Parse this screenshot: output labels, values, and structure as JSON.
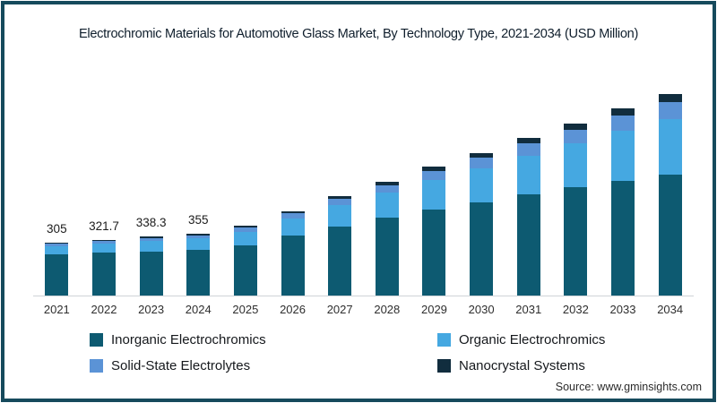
{
  "frame": {
    "border_color": "#164a5c"
  },
  "title": "Electrochromic Materials for Automotive Glass Market, By Technology Type, 2021-2034 (USD Million)",
  "source": "Source: www.gminsights.com",
  "legend": {
    "order": [
      "Inorganic Electrochromics",
      "Organic Electrochromics",
      "Solid-State Electrolytes",
      "Nanocrystal Systems"
    ],
    "colors": {
      "Inorganic Electrochromics": "#0d5a71",
      "Organic Electrochromics": "#45a8e1",
      "Solid-State Electrolytes": "#5b93d6",
      "Nanocrystal Systems": "#112d3e"
    }
  },
  "chart_data": {
    "type": "bar",
    "stacked": true,
    "title": "Electrochromic Materials for Automotive Glass Market, By Technology Type, 2021-2034 (USD Million)",
    "xlabel": "",
    "ylabel": "USD Million",
    "ylim": [
      0,
      1215
    ],
    "grid": false,
    "legend_position": "bottom",
    "categories": [
      "2021",
      "2022",
      "2023",
      "2024",
      "2025",
      "2026",
      "2027",
      "2028",
      "2029",
      "2030",
      "2031",
      "2032",
      "2033",
      "2034"
    ],
    "bar_value_labels": [
      "305",
      "321.7",
      "338.3",
      "355",
      "",
      "",
      "",
      "",
      "",
      "",
      "",
      "",
      "",
      ""
    ],
    "totals": [
      305,
      321.7,
      338.3,
      355,
      400,
      485,
      572,
      655,
      740,
      820,
      905,
      990,
      1075,
      1160
    ],
    "series": [
      {
        "name": "Inorganic Electrochromics",
        "color": "#0d5a71",
        "values": [
          237.9,
          246.5,
          254.6,
          262.1,
          289.9,
          344.7,
          398.6,
          447.4,
          495.2,
          537.4,
          580.7,
          621.4,
          659.9,
          696.0
        ]
      },
      {
        "name": "Organic Electrochromics",
        "color": "#45a8e1",
        "values": [
          47.3,
          52.8,
          58.7,
          64.9,
          76.8,
          97.6,
          120.3,
          143.9,
          169.3,
          195.1,
          223.7,
          253.8,
          285.6,
          319.0
        ]
      },
      {
        "name": "Solid-State Electrolytes",
        "color": "#5b93d6",
        "values": [
          13.7,
          15.5,
          17.3,
          19.2,
          22.9,
          29.3,
          36.3,
          43.7,
          51.6,
          59.7,
          68.6,
          78.3,
          88.2,
          98.6
        ]
      },
      {
        "name": "Nanocrystal Systems",
        "color": "#112d3e",
        "values": [
          6.1,
          6.9,
          7.8,
          8.7,
          10.5,
          13.5,
          16.8,
          20.1,
          23.9,
          27.8,
          32.0,
          36.5,
          41.3,
          46.4
        ]
      }
    ]
  }
}
